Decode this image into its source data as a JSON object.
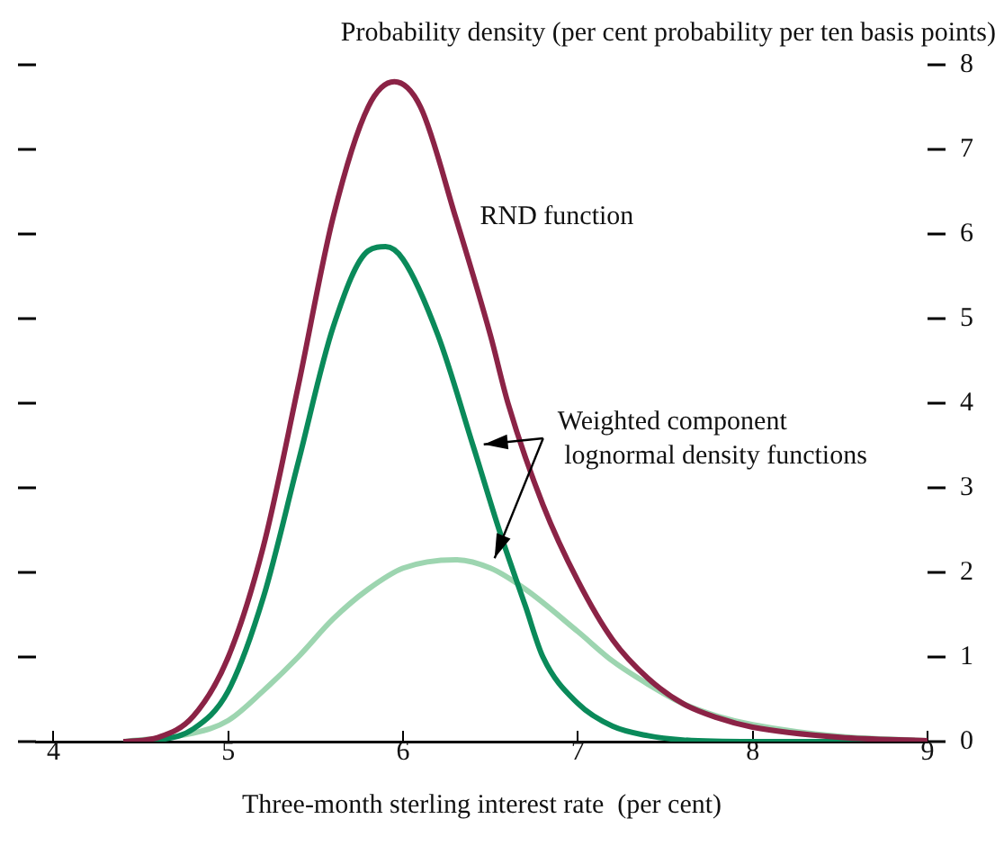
{
  "chart_data": {
    "type": "line",
    "xlabel": "Three-month sterling interest rate  (per cent)",
    "ylabel": "Probability density (per cent probability per ten basis points)",
    "xlim": [
      3.9,
      9
    ],
    "xticks": [
      4,
      5,
      6,
      7,
      8,
      9
    ],
    "ylim": [
      0,
      8
    ],
    "yticks": [
      0,
      1,
      2,
      3,
      4,
      5,
      6,
      7,
      8
    ],
    "grid": false,
    "legend": false,
    "marker": "none",
    "line_style": "solid",
    "annotations": [
      "RND function",
      "Weighted component\n lognormal density functions"
    ],
    "series": [
      {
        "color": "#8b2346",
        "x": [
          4.4,
          4.6,
          4.8,
          5.0,
          5.2,
          5.4,
          5.6,
          5.8,
          5.95,
          6.1,
          6.3,
          6.5,
          6.6,
          6.8,
          7.0,
          7.2,
          7.4,
          7.6,
          7.8,
          8.0,
          8.5,
          9.0
        ],
        "values": [
          0,
          0.05,
          0.3,
          1.0,
          2.3,
          4.2,
          6.2,
          7.5,
          7.8,
          7.5,
          6.2,
          4.8,
          4.0,
          2.8,
          1.9,
          1.2,
          0.75,
          0.45,
          0.28,
          0.17,
          0.05,
          0.01
        ]
      },
      {
        "color": "#0a8a5a",
        "x": [
          4.4,
          4.6,
          4.8,
          5.0,
          5.2,
          5.4,
          5.6,
          5.8,
          5.9,
          6.0,
          6.2,
          6.4,
          6.55,
          6.7,
          6.8,
          7.0,
          7.2,
          7.4,
          7.6,
          8.0,
          9.0
        ],
        "values": [
          0,
          0.02,
          0.15,
          0.6,
          1.7,
          3.3,
          4.9,
          5.8,
          5.85,
          5.7,
          4.8,
          3.5,
          2.5,
          1.6,
          1.0,
          0.45,
          0.18,
          0.07,
          0.02,
          0,
          0
        ]
      },
      {
        "color": "#9dd5b0",
        "x": [
          4.4,
          4.8,
          5.0,
          5.2,
          5.4,
          5.6,
          5.8,
          6.0,
          6.3,
          6.5,
          6.7,
          7.0,
          7.2,
          7.4,
          7.6,
          7.8,
          8.0,
          8.5,
          9.0
        ],
        "values": [
          0,
          0.1,
          0.25,
          0.6,
          1.0,
          1.45,
          1.8,
          2.05,
          2.15,
          2.05,
          1.8,
          1.3,
          0.95,
          0.68,
          0.45,
          0.3,
          0.2,
          0.06,
          0.01
        ]
      }
    ]
  }
}
